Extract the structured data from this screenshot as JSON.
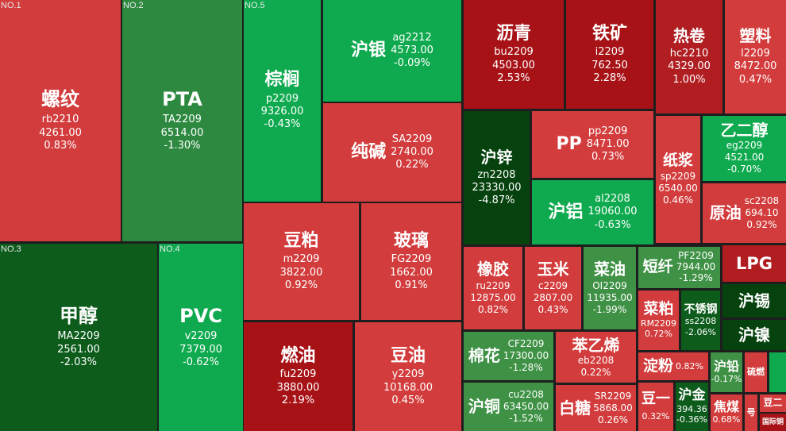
{
  "colors": {
    "background": "#1e1e1e",
    "red_light": "#d33c3c",
    "red_dark": "#a71216",
    "green_light": "#0faa4f",
    "green_mid": "#3f9245",
    "green_dark": "#0d5c1c"
  },
  "tiles": [
    {
      "rank": "NO.1",
      "name": "螺纹",
      "code": "rb2210",
      "price": "4261.00",
      "change": "0.83%"
    },
    {
      "rank": "NO.2",
      "name": "PTA",
      "code": "TA2209",
      "price": "6514.00",
      "change": "-1.30%"
    },
    {
      "rank": "NO.5",
      "name": "棕榈",
      "code": "p2209",
      "price": "9326.00",
      "change": "-0.43%"
    },
    {
      "name": "沪银",
      "code": "ag2212",
      "price": "4573.00",
      "change": "-0.09%"
    },
    {
      "name": "纯碱",
      "code": "SA2209",
      "price": "2740.00",
      "change": "0.22%"
    },
    {
      "rank": "NO.3",
      "name": "甲醇",
      "code": "MA2209",
      "price": "2561.00",
      "change": "-2.03%"
    },
    {
      "rank": "NO.4",
      "name": "PVC",
      "code": "v2209",
      "price": "7379.00",
      "change": "-0.62%"
    },
    {
      "name": "豆粕",
      "code": "m2209",
      "price": "3822.00",
      "change": "0.92%"
    },
    {
      "name": "玻璃",
      "code": "FG2209",
      "price": "1662.00",
      "change": "0.91%"
    },
    {
      "name": "燃油",
      "code": "fu2209",
      "price": "3880.00",
      "change": "2.19%"
    },
    {
      "name": "豆油",
      "code": "y2209",
      "price": "10168.00",
      "change": "0.45%"
    },
    {
      "name": "沥青",
      "code": "bu2209",
      "price": "4503.00",
      "change": "2.53%"
    },
    {
      "name": "铁矿",
      "code": "i2209",
      "price": "762.50",
      "change": "2.28%"
    },
    {
      "name": "热卷",
      "code": "hc2210",
      "price": "4329.00",
      "change": "1.00%"
    },
    {
      "name": "塑料",
      "code": "l2209",
      "price": "8472.00",
      "change": "0.47%"
    },
    {
      "name": "沪锌",
      "code": "zn2208",
      "price": "23330.00",
      "change": "-4.87%"
    },
    {
      "name": "PP",
      "code": "pp2209",
      "price": "8471.00",
      "change": "0.73%"
    },
    {
      "name": "纸浆",
      "code": "sp2209",
      "price": "6540.00",
      "change": "0.46%"
    },
    {
      "name": "乙二醇",
      "code": "eg2209",
      "price": "4521.00",
      "change": "-0.70%"
    },
    {
      "name": "沪铝",
      "code": "al2208",
      "price": "19060.00",
      "change": "-0.63%"
    },
    {
      "name": "原油",
      "code": "sc2208",
      "price": "694.10",
      "change": "0.92%"
    },
    {
      "name": "橡胶",
      "code": "ru2209",
      "price": "12875.00",
      "change": "0.82%"
    },
    {
      "name": "玉米",
      "code": "c2209",
      "price": "2807.00",
      "change": "0.43%"
    },
    {
      "name": "菜油",
      "code": "OI2209",
      "price": "11935.00",
      "change": "-1.99%"
    },
    {
      "name": "短纤",
      "code": "PF2209",
      "price": "7944.00",
      "change": "-1.29%"
    },
    {
      "name": "LPG"
    },
    {
      "name": "菜粕",
      "code": "RM2209",
      "change": "0.72%"
    },
    {
      "name": "不锈钢",
      "code": "ss2208",
      "change": "-2.06%"
    },
    {
      "name": "沪锡"
    },
    {
      "name": "沪镍"
    },
    {
      "name": "棉花",
      "code": "CF2209",
      "price": "17300.00",
      "change": "-1.28%"
    },
    {
      "name": "苯乙烯",
      "code": "eb2208",
      "change": "0.22%"
    },
    {
      "name": "淀粉",
      "change": "0.82%"
    },
    {
      "name": "沪铅",
      "change": "-0.17%"
    },
    {
      "name": "沪铜",
      "code": "cu2208",
      "price": "63450.00",
      "change": "-1.52%"
    },
    {
      "name": "白糖",
      "code": "SR2209",
      "price": "5868.00",
      "change": "0.26%"
    },
    {
      "name": "豆一",
      "change": "0.32%"
    },
    {
      "name": "沪金",
      "code": "394.36",
      "change": "-0.36%"
    },
    {
      "name": "焦煤",
      "change": "0.68%"
    },
    {
      "name": "硫燃"
    },
    {
      "name": "号"
    },
    {
      "name": "豆二"
    },
    {
      "name": "国际铜"
    }
  ]
}
